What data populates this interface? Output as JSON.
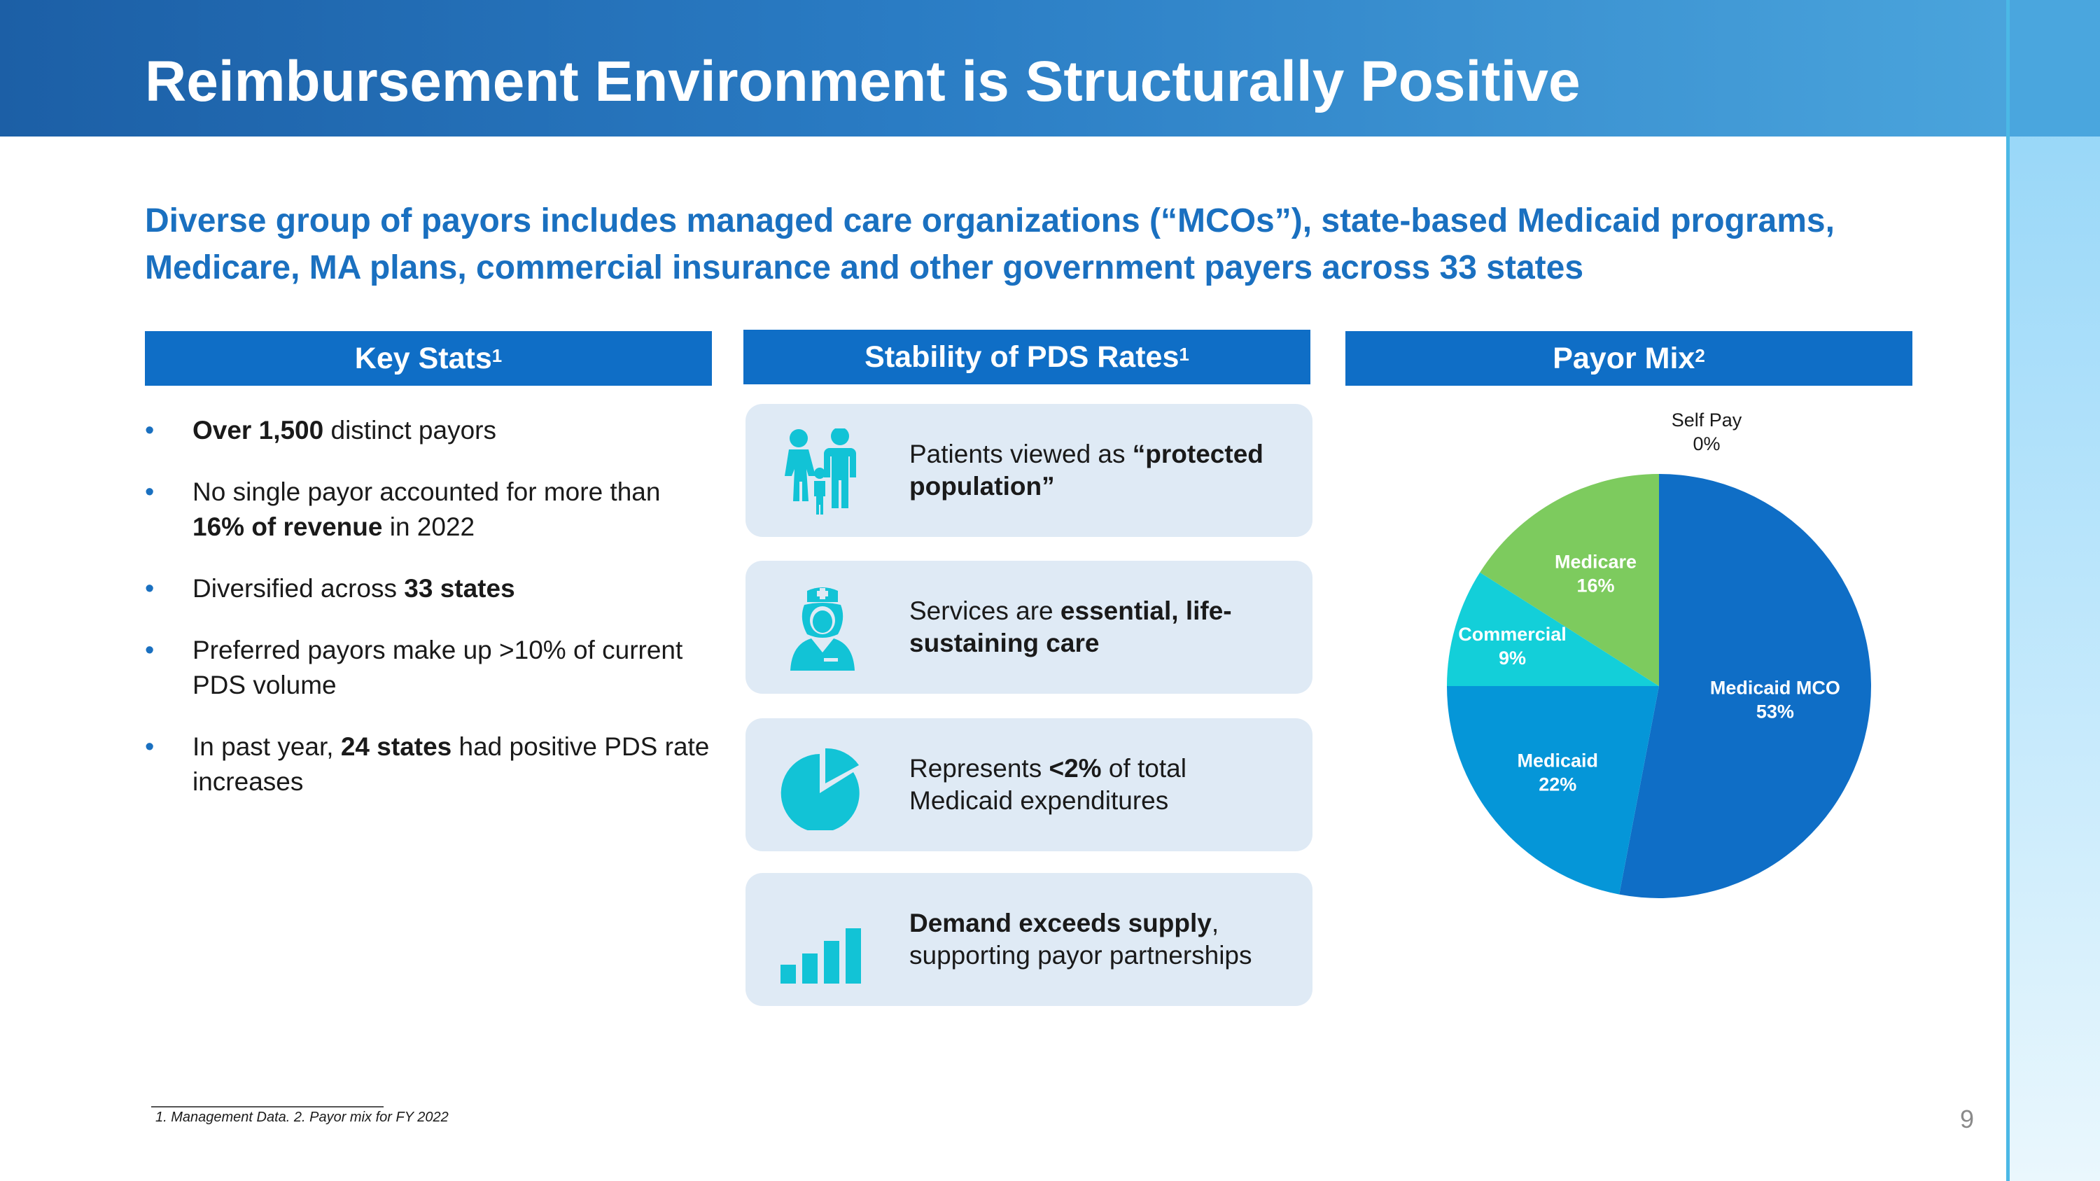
{
  "title": "Reimbursement Environment is Structurally Positive",
  "subtitle": "Diverse group of payors includes managed care organizations (“MCOs”), state-based Medicaid programs, Medicare, MA plans, commercial insurance and other government payers across 33 states",
  "columns": {
    "key_stats": {
      "label": "Key Stats",
      "sup": "1"
    },
    "stability": {
      "label": "Stability of PDS Rates",
      "sup": "1"
    },
    "payor_mix": {
      "label": "Payor Mix",
      "sup": "2"
    }
  },
  "bullets": [
    {
      "pre": "",
      "bold": "Over 1,500",
      "post": " distinct payors"
    },
    {
      "pre": "No single payor accounted for more than ",
      "bold": "16% of revenue",
      "post": " in 2022"
    },
    {
      "pre": "Diversified across ",
      "bold": "33 states",
      "post": ""
    },
    {
      "pre": "Preferred payors make up >10% of current PDS volume",
      "bold": "",
      "post": ""
    },
    {
      "pre": "In past year, ",
      "bold": "24 states",
      "post": " had positive PDS rate increases"
    }
  ],
  "cards": [
    {
      "icon": "family-icon",
      "pre": "Patients viewed as ",
      "bold": "“protected population”",
      "post": ""
    },
    {
      "icon": "nurse-icon",
      "pre": "Services are ",
      "bold": "essential, life-sustaining care",
      "post": ""
    },
    {
      "icon": "pie-slice-icon",
      "pre": "Represents ",
      "bold": "<2%",
      "post": " of total Medicaid expenditures"
    },
    {
      "icon": "bar-chart-icon",
      "pre": "",
      "bold": "Demand exceeds supply",
      "post": ", supporting payor partnerships"
    }
  ],
  "colors": {
    "title_bar": "#1c5fa6",
    "accent": "#0f6ec6",
    "icon": "#12c3d6",
    "card_bg": "#dfeaf5"
  },
  "chart_data": {
    "type": "pie",
    "start": "12 o'clock, clockwise",
    "slices": [
      {
        "name": "Medicaid MCO",
        "value": 53,
        "label": "53%",
        "color": "#0f6ec6"
      },
      {
        "name": "Medicaid",
        "value": 22,
        "label": "22%",
        "color": "#0596d8"
      },
      {
        "name": "Commercial",
        "value": 9,
        "label": "9%",
        "color": "#13cfd9"
      },
      {
        "name": "Medicare",
        "value": 16,
        "label": "16%",
        "color": "#7dcb5e"
      },
      {
        "name": "Self Pay",
        "value": 0,
        "label": "0%",
        "color": "#d0d0d0"
      }
    ]
  },
  "footnote": "1. Management Data.  2. Payor mix for FY 2022",
  "page_number": "9"
}
